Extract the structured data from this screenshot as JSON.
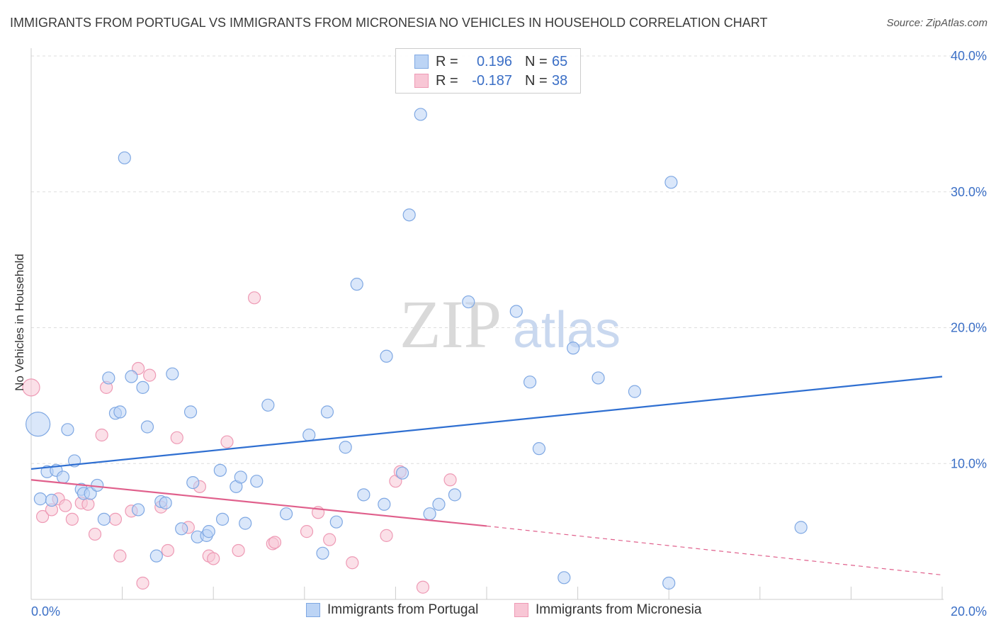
{
  "title": "IMMIGRANTS FROM PORTUGAL VS IMMIGRANTS FROM MICRONESIA NO VEHICLES IN HOUSEHOLD CORRELATION CHART",
  "source": "Source: ZipAtlas.com",
  "watermark": {
    "zip": "ZIP",
    "atlas": "atlas"
  },
  "legend": {
    "rows": [
      {
        "r_label": "R =",
        "r_value": "0.196",
        "n_label": "N =",
        "n_value": "65"
      },
      {
        "r_label": "R =",
        "r_value": "-0.187",
        "n_label": "N =",
        "n_value": "38"
      }
    ]
  },
  "colors": {
    "portugal_fill": "#bcd4f5",
    "portugal_stroke": "#7fa8e3",
    "portugal_line": "#2f6fd1",
    "micronesia_fill": "#f8c6d5",
    "micronesia_stroke": "#ee9ab5",
    "micronesia_line": "#e0608c",
    "tick_label": "#3b6fc6",
    "grid": "#dddddd"
  },
  "chart_data": {
    "type": "scatter",
    "title": "IMMIGRANTS FROM PORTUGAL VS IMMIGRANTS FROM MICRONESIA NO VEHICLES IN HOUSEHOLD CORRELATION CHART",
    "xlabel": "",
    "ylabel": "No Vehicles in Household",
    "xlim": [
      0,
      20
    ],
    "ylim": [
      0,
      40
    ],
    "x_tick_labels": [
      "0.0%",
      "20.0%"
    ],
    "y_ticks": [
      10,
      20,
      30,
      40
    ],
    "y_tick_labels": [
      "10.0%",
      "20.0%",
      "30.0%",
      "40.0%"
    ],
    "grid": true,
    "legend_position": "top-center",
    "series": [
      {
        "name": "Immigrants from Portugal",
        "r": 0.196,
        "n": 65,
        "trend": {
          "x": [
            0,
            20
          ],
          "y": [
            9.6,
            16.4
          ],
          "dashed_from": null
        },
        "points": [
          [
            0.15,
            12.9,
            "large"
          ],
          [
            0.2,
            7.4
          ],
          [
            0.35,
            9.4
          ],
          [
            0.45,
            7.3
          ],
          [
            0.55,
            9.5
          ],
          [
            0.7,
            9.0
          ],
          [
            0.8,
            12.5
          ],
          [
            0.95,
            10.2
          ],
          [
            1.1,
            8.1
          ],
          [
            1.15,
            7.8
          ],
          [
            1.3,
            7.8
          ],
          [
            1.45,
            8.4
          ],
          [
            1.6,
            5.9
          ],
          [
            1.7,
            16.3
          ],
          [
            1.85,
            13.7
          ],
          [
            1.95,
            13.8
          ],
          [
            2.05,
            32.5
          ],
          [
            2.2,
            16.4
          ],
          [
            2.35,
            6.6
          ],
          [
            2.45,
            15.6
          ],
          [
            2.55,
            12.7
          ],
          [
            2.75,
            3.2
          ],
          [
            2.85,
            7.2
          ],
          [
            2.95,
            7.1
          ],
          [
            3.1,
            16.6
          ],
          [
            3.3,
            5.2
          ],
          [
            3.5,
            13.8
          ],
          [
            3.55,
            8.6
          ],
          [
            3.65,
            4.6
          ],
          [
            3.85,
            4.7
          ],
          [
            3.9,
            5.0
          ],
          [
            4.15,
            9.5
          ],
          [
            4.2,
            5.9
          ],
          [
            4.5,
            8.3
          ],
          [
            4.6,
            9.0
          ],
          [
            4.7,
            5.6
          ],
          [
            4.95,
            8.7
          ],
          [
            5.2,
            14.3
          ],
          [
            5.6,
            6.3
          ],
          [
            6.1,
            12.1
          ],
          [
            6.4,
            3.4
          ],
          [
            6.5,
            13.8
          ],
          [
            6.7,
            5.7
          ],
          [
            6.9,
            11.2
          ],
          [
            7.15,
            23.2
          ],
          [
            7.3,
            7.7
          ],
          [
            7.75,
            7.0
          ],
          [
            7.8,
            17.9
          ],
          [
            8.15,
            9.3
          ],
          [
            8.55,
            35.7
          ],
          [
            8.3,
            28.3
          ],
          [
            8.75,
            6.3
          ],
          [
            8.95,
            7.0
          ],
          [
            9.3,
            7.7
          ],
          [
            9.6,
            21.9
          ],
          [
            10.65,
            21.2
          ],
          [
            10.95,
            16.0
          ],
          [
            11.15,
            11.1
          ],
          [
            11.7,
            1.6
          ],
          [
            11.9,
            18.5
          ],
          [
            12.45,
            16.3
          ],
          [
            13.25,
            15.3
          ],
          [
            14.0,
            1.2
          ],
          [
            14.05,
            30.7
          ],
          [
            16.9,
            5.3
          ]
        ]
      },
      {
        "name": "Immigrants from Micronesia",
        "r": -0.187,
        "n": 38,
        "trend": {
          "x": [
            0,
            10
          ],
          "y": [
            8.8,
            5.4
          ],
          "dashed_to": [
            20,
            1.8
          ]
        },
        "points": [
          [
            0.0,
            15.6,
            "medium"
          ],
          [
            0.25,
            6.1
          ],
          [
            0.45,
            6.6
          ],
          [
            0.6,
            7.4
          ],
          [
            0.75,
            6.9
          ],
          [
            0.9,
            5.9
          ],
          [
            1.1,
            7.1
          ],
          [
            1.25,
            7.0
          ],
          [
            1.4,
            4.8
          ],
          [
            1.55,
            12.1
          ],
          [
            1.65,
            15.6
          ],
          [
            1.85,
            5.9
          ],
          [
            1.95,
            3.2
          ],
          [
            2.2,
            6.5
          ],
          [
            2.35,
            17.0
          ],
          [
            2.45,
            1.2
          ],
          [
            2.6,
            16.5
          ],
          [
            2.85,
            6.8
          ],
          [
            3.0,
            3.6
          ],
          [
            3.2,
            11.9
          ],
          [
            3.45,
            5.3
          ],
          [
            3.7,
            8.3
          ],
          [
            3.9,
            3.2
          ],
          [
            4.0,
            3.0
          ],
          [
            4.3,
            11.6
          ],
          [
            4.55,
            3.6
          ],
          [
            4.9,
            22.2
          ],
          [
            5.3,
            4.1
          ],
          [
            5.35,
            4.2
          ],
          [
            6.05,
            5.0
          ],
          [
            6.3,
            6.4
          ],
          [
            6.55,
            4.4
          ],
          [
            7.05,
            2.7
          ],
          [
            7.8,
            4.7
          ],
          [
            8.0,
            8.7
          ],
          [
            8.1,
            9.4
          ],
          [
            8.6,
            0.9
          ],
          [
            9.2,
            8.8
          ]
        ]
      }
    ]
  }
}
